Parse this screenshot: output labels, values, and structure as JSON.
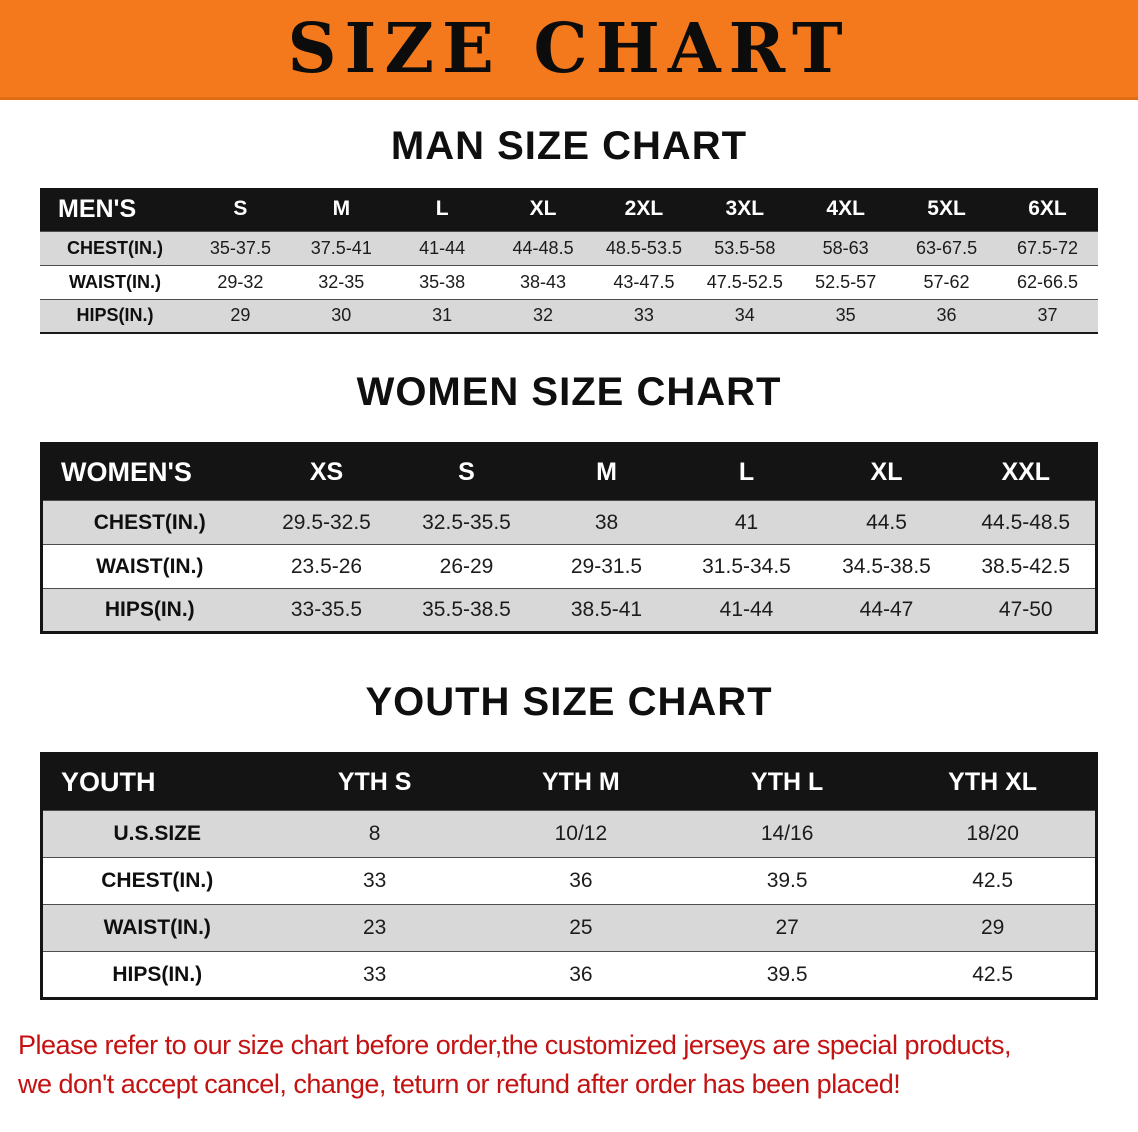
{
  "banner": {
    "title": "SIZE CHART"
  },
  "colors": {
    "banner_bg": "#F4791C",
    "table_header_bar": "#141414",
    "row_stripe": "#D8D8D8",
    "notice_red": "#C41111"
  },
  "sections": [
    {
      "id": "men",
      "heading": "MAN SIZE CHART",
      "table": {
        "header_label": "MEN'S",
        "columns": [
          "S",
          "M",
          "L",
          "XL",
          "2XL",
          "3XL",
          "4XL",
          "5XL",
          "6XL"
        ],
        "rows": [
          {
            "label": "CHEST(IN.)",
            "values": [
              "35-37.5",
              "37.5-41",
              "41-44",
              "44-48.5",
              "48.5-53.5",
              "53.5-58",
              "58-63",
              "63-67.5",
              "67.5-72"
            ]
          },
          {
            "label": "WAIST(IN.)",
            "values": [
              "29-32",
              "32-35",
              "35-38",
              "38-43",
              "43-47.5",
              "47.5-52.5",
              "52.5-57",
              "57-62",
              "62-66.5"
            ]
          },
          {
            "label": "HIPS(IN.)",
            "values": [
              "29",
              "30",
              "31",
              "32",
              "33",
              "34",
              "35",
              "36",
              "37"
            ]
          }
        ]
      }
    },
    {
      "id": "women",
      "heading": "WOMEN SIZE CHART",
      "table": {
        "header_label": "WOMEN'S",
        "columns": [
          "XS",
          "S",
          "M",
          "L",
          "XL",
          "XXL"
        ],
        "rows": [
          {
            "label": "CHEST(IN.)",
            "values": [
              "29.5-32.5",
              "32.5-35.5",
              "38",
              "41",
              "44.5",
              "44.5-48.5"
            ]
          },
          {
            "label": "WAIST(IN.)",
            "values": [
              "23.5-26",
              "26-29",
              "29-31.5",
              "31.5-34.5",
              "34.5-38.5",
              "38.5-42.5"
            ]
          },
          {
            "label": "HIPS(IN.)",
            "values": [
              "33-35.5",
              "35.5-38.5",
              "38.5-41",
              "41-44",
              "44-47",
              "47-50"
            ]
          }
        ]
      }
    },
    {
      "id": "youth",
      "heading": "YOUTH SIZE CHART",
      "table": {
        "header_label": "YOUTH",
        "columns": [
          "YTH S",
          "YTH M",
          "YTH L",
          "YTH XL"
        ],
        "rows": [
          {
            "label": "U.S.SIZE",
            "values": [
              "8",
              "10/12",
              "14/16",
              "18/20"
            ]
          },
          {
            "label": "CHEST(IN.)",
            "values": [
              "33",
              "36",
              "39.5",
              "42.5"
            ]
          },
          {
            "label": "WAIST(IN.)",
            "values": [
              "23",
              "25",
              "27",
              "29"
            ]
          },
          {
            "label": "HIPS(IN.)",
            "values": [
              "33",
              "36",
              "39.5",
              "42.5"
            ]
          }
        ]
      }
    }
  ],
  "notice": {
    "line1": "Please refer to our size chart before order,the customized jerseys are special products,",
    "line2": "we don't accept cancel, change, teturn or refund after order has been placed!"
  }
}
